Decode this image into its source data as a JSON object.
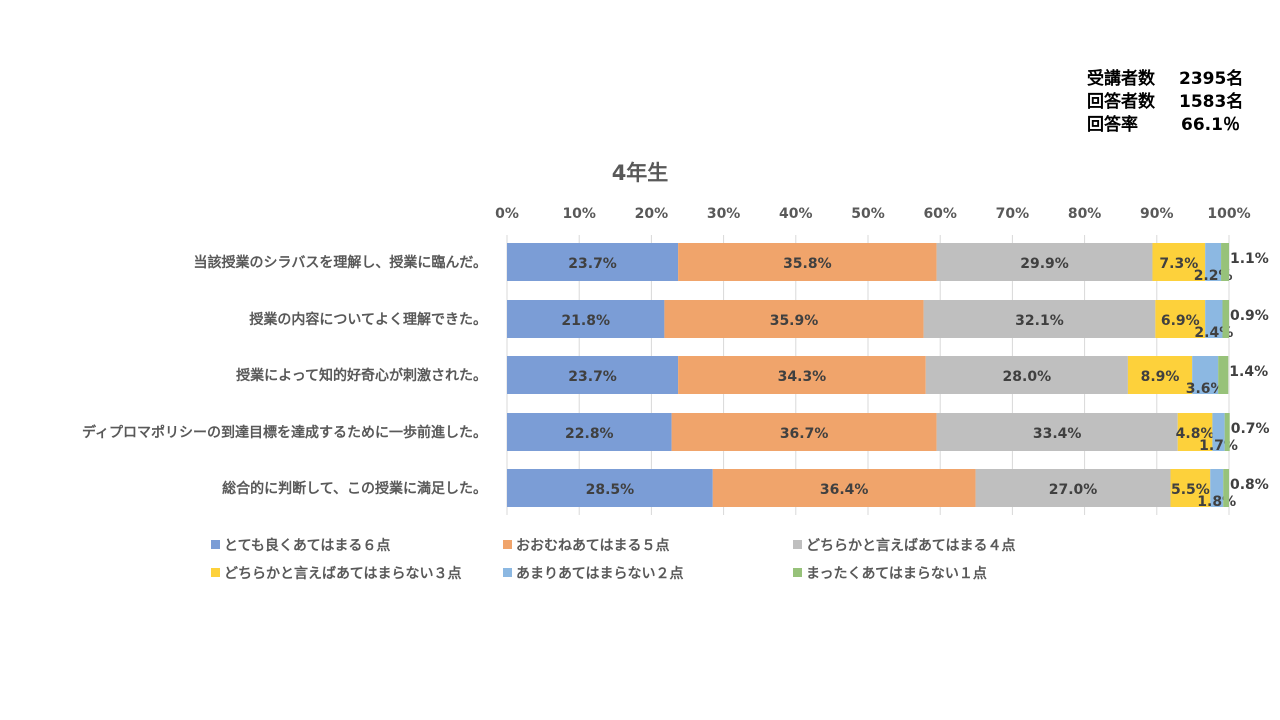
{
  "info": [
    {
      "label": "受講者数",
      "value": "2395名"
    },
    {
      "label": "回答者数",
      "value": "1583名"
    },
    {
      "label": "回答率",
      "value": "66.1％"
    }
  ],
  "chart_data": {
    "type": "bar",
    "orientation": "horizontal",
    "stacked": "100%",
    "title": "4年生",
    "xlim": [
      0,
      100
    ],
    "x_ticks": [
      "0%",
      "10%",
      "20%",
      "30%",
      "40%",
      "50%",
      "60%",
      "70%",
      "80%",
      "90%",
      "100%"
    ],
    "grid": true,
    "legend_position": "bottom",
    "categories": [
      "当該授業のシラバスを理解し、授業に臨んだ。",
      "授業の内容についてよく理解できた。",
      "授業によって知的好奇心が刺激された。",
      "ディプロマポリシーの到達目標を達成するために一歩前進した。",
      "総合的に判断して、この授業に満足した。"
    ],
    "series": [
      {
        "name": "とても良くあてはまる６点",
        "color": "#7b9dd6",
        "values": [
          23.7,
          21.8,
          23.7,
          22.8,
          28.5
        ]
      },
      {
        "name": "おおむねあてはまる５点",
        "color": "#f0a46b",
        "values": [
          35.8,
          35.9,
          34.3,
          36.7,
          36.4
        ]
      },
      {
        "name": "どちらかと言えばあてはまる４点",
        "color": "#bfbfbf",
        "values": [
          29.9,
          32.1,
          28.0,
          33.4,
          27.0
        ]
      },
      {
        "name": "どちらかと言えばあてはまらない３点",
        "color": "#fdd13b",
        "values": [
          7.3,
          6.9,
          8.9,
          4.8,
          5.5
        ]
      },
      {
        "name": "あまりあてはまらない２点",
        "color": "#8cb8e2",
        "values": [
          2.2,
          2.4,
          3.6,
          1.7,
          1.8
        ]
      },
      {
        "name": "まったくあてはまらない１点",
        "color": "#97c27a",
        "values": [
          1.1,
          0.9,
          1.4,
          0.7,
          0.8
        ]
      }
    ]
  }
}
